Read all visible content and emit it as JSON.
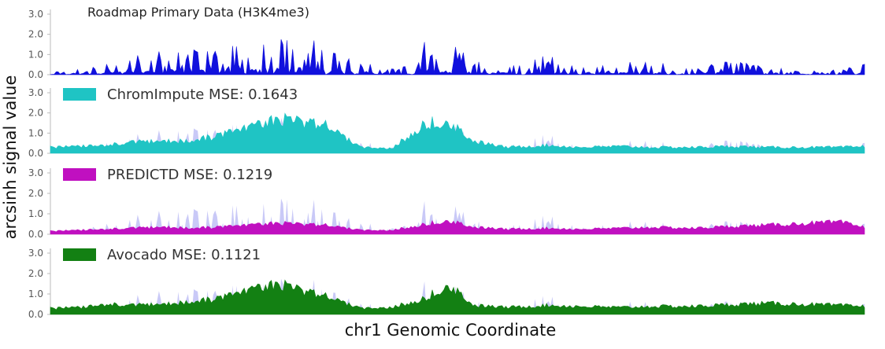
{
  "chart_data": {
    "type": "area",
    "ylabel": "arcsinh signal value",
    "xlabel": "chr1 Genomic Coordinate",
    "ylim": [
      0,
      3.0
    ],
    "yticks": [
      "0.0",
      "1.0",
      "2.0",
      "3.0"
    ],
    "x": [
      0,
      0.04,
      0.07,
      0.1,
      0.14,
      0.17,
      0.21,
      0.25,
      0.28,
      0.31,
      0.34,
      0.38,
      0.42,
      0.46,
      0.49,
      0.52,
      0.56,
      0.61,
      0.65,
      0.7,
      0.74,
      0.79,
      0.84,
      0.88,
      0.93,
      0.97,
      1.0
    ],
    "observed": {
      "name": "Roadmap Primary Data (H3K4me3)",
      "color": "#1010dd",
      "values": [
        0.1,
        0.3,
        0.5,
        0.9,
        1.1,
        1.0,
        1.3,
        1.2,
        1.5,
        1.6,
        1.2,
        0.6,
        0.3,
        1.4,
        1.3,
        0.8,
        0.4,
        0.9,
        0.3,
        0.5,
        0.6,
        0.3,
        0.6,
        0.3,
        0.2,
        0.2,
        0.5
      ]
    },
    "panels": [
      {
        "name": "ChromImpute",
        "mse_label": "ChromImpute MSE: 0.1643",
        "color": "#1fc4c4",
        "values": [
          0.3,
          0.35,
          0.4,
          0.55,
          0.6,
          0.6,
          0.9,
          1.3,
          1.7,
          1.6,
          1.4,
          0.3,
          0.25,
          1.5,
          1.6,
          0.6,
          0.3,
          0.4,
          0.3,
          0.35,
          0.3,
          0.3,
          0.35,
          0.3,
          0.3,
          0.3,
          0.35
        ]
      },
      {
        "name": "PREDICTD",
        "mse_label": "PREDICTD MSE: 0.1219",
        "color": "#c010c0",
        "values": [
          0.15,
          0.2,
          0.25,
          0.3,
          0.35,
          0.3,
          0.35,
          0.45,
          0.55,
          0.5,
          0.45,
          0.2,
          0.2,
          0.5,
          0.7,
          0.35,
          0.25,
          0.3,
          0.25,
          0.3,
          0.35,
          0.3,
          0.4,
          0.45,
          0.55,
          0.6,
          0.35
        ]
      },
      {
        "name": "Avocado",
        "mse_label": "Avocado MSE: 0.1121",
        "color": "#138013",
        "values": [
          0.3,
          0.35,
          0.5,
          0.45,
          0.5,
          0.6,
          0.8,
          1.2,
          1.5,
          1.2,
          0.9,
          0.3,
          0.35,
          0.8,
          1.5,
          0.45,
          0.35,
          0.45,
          0.4,
          0.35,
          0.4,
          0.4,
          0.5,
          0.55,
          0.5,
          0.45,
          0.4
        ]
      }
    ]
  }
}
